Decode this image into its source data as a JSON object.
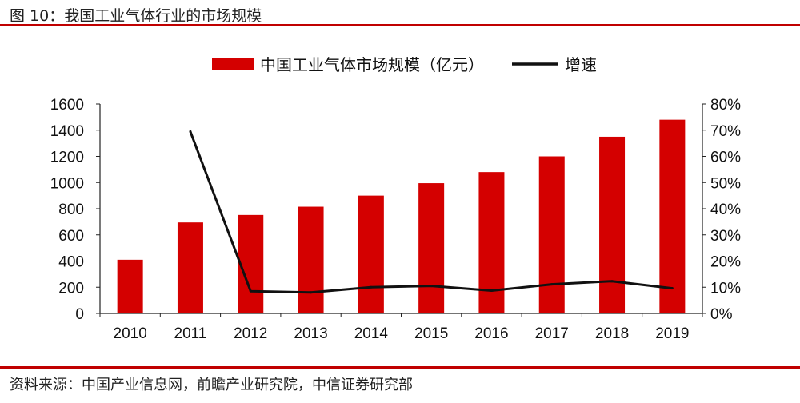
{
  "header": {
    "title": "图 10：我国工业气体行业的市场规模"
  },
  "footer": {
    "source": "资料来源：中国产业信息网，前瞻产业研究院，中信证券研究部"
  },
  "chart_data": {
    "type": "bar",
    "categories": [
      "2010",
      "2011",
      "2012",
      "2013",
      "2014",
      "2015",
      "2016",
      "2017",
      "2018",
      "2019"
    ],
    "series": [
      {
        "name": "中国工业气体市场规模（亿元）",
        "kind": "bar",
        "axis": "left",
        "color": "#d40000",
        "values": [
          410,
          695,
          752,
          815,
          900,
          995,
          1080,
          1200,
          1350,
          1480
        ]
      },
      {
        "name": "增速",
        "kind": "line",
        "axis": "right",
        "color": "#111111",
        "values": [
          null,
          0.695,
          0.085,
          0.08,
          0.1,
          0.105,
          0.087,
          0.111,
          0.123,
          0.096
        ]
      }
    ],
    "left_axis": {
      "ylim": [
        0,
        1600
      ],
      "ticks": [
        "0",
        "200",
        "400",
        "600",
        "800",
        "1000",
        "1200",
        "1400",
        "1600"
      ]
    },
    "right_axis": {
      "ylim": [
        0,
        0.8
      ],
      "ticks": [
        "0%",
        "10%",
        "20%",
        "30%",
        "40%",
        "50%",
        "60%",
        "70%",
        "80%"
      ]
    },
    "legend_position": "top-center",
    "grid": false
  }
}
